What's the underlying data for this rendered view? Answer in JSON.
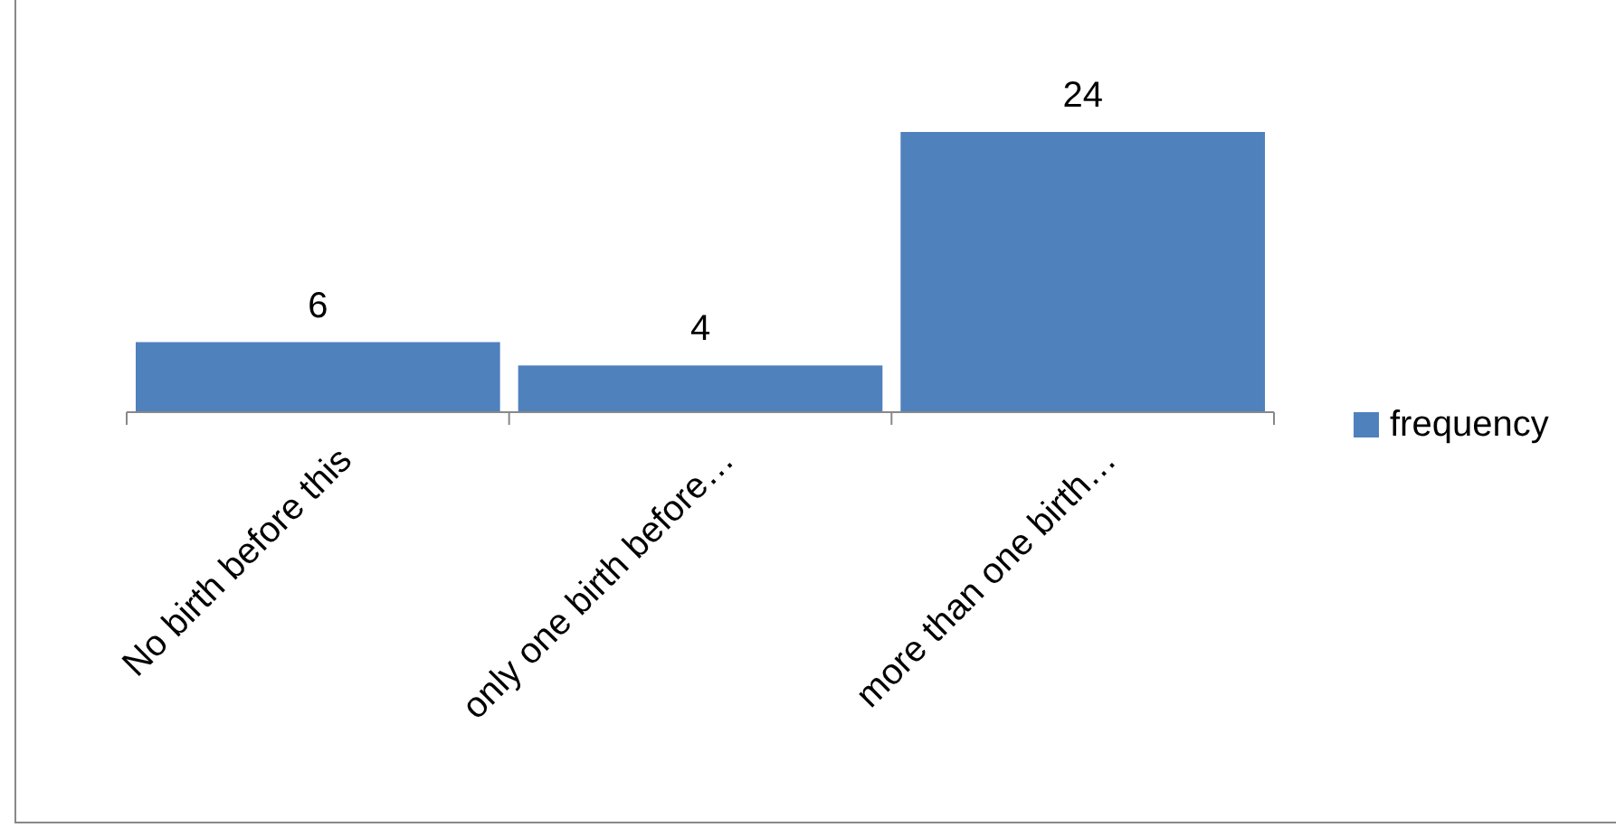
{
  "chart_data": {
    "type": "bar",
    "categories": [
      "No birth before this",
      "only one birth before…",
      "more than one birth…"
    ],
    "series": [
      {
        "name": "frequency",
        "color": "#4f81bd",
        "values": [
          6,
          4,
          24
        ]
      }
    ],
    "data_labels": true,
    "legend": "right"
  }
}
